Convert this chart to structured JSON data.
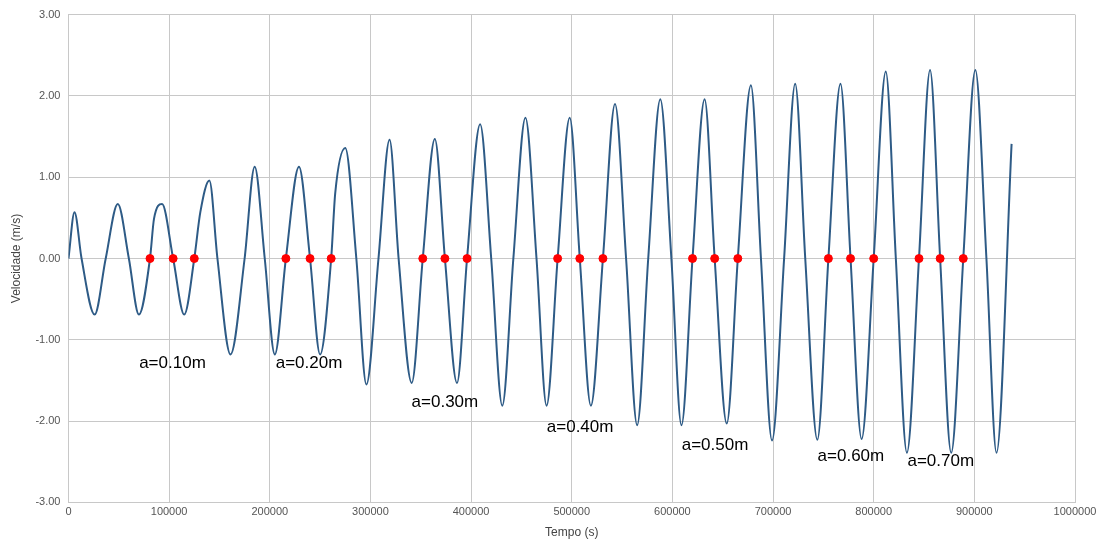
{
  "chart_data": {
    "type": "line",
    "xlabel": "Tempo (s)",
    "ylabel": "Velocidade (m/s)",
    "xlim": [
      0,
      1000000
    ],
    "xticks": [
      0,
      100000,
      200000,
      300000,
      400000,
      500000,
      600000,
      700000,
      800000,
      900000,
      1000000
    ],
    "ylim": [
      -3,
      3
    ],
    "yticks": [
      {
        "value": -3,
        "label": "-3.00"
      },
      {
        "value": -2,
        "label": "-2.00"
      },
      {
        "value": -1,
        "label": "-1.00"
      },
      {
        "value": 0,
        "label": "0.00"
      },
      {
        "value": 1,
        "label": "1.00"
      },
      {
        "value": 2,
        "label": "2.00"
      },
      {
        "value": 3,
        "label": "3.00"
      }
    ],
    "grid": true,
    "legend": false,
    "series": [
      {
        "color": "#2e5b86",
        "marker": "none",
        "line_style": "solid",
        "x": [
          0,
          6000,
          13000,
          26000,
          37000,
          49000,
          60000,
          70000,
          81000,
          85000,
          93000,
          104000,
          115000,
          125000,
          131000,
          140000,
          148000,
          161000,
          175000,
          185000,
          195000,
          205000,
          216000,
          229000,
          240000,
          250000,
          261000,
          265000,
          275000,
          286000,
          296000,
          308000,
          319000,
          328000,
          341000,
          352000,
          364000,
          374000,
          386000,
          396000,
          409000,
          420000,
          431000,
          442000,
          454000,
          465000,
          475000,
          486000,
          498000,
          508000,
          519000,
          531000,
          543000,
          554000,
          565000,
          576000,
          588000,
          599000,
          609000,
          620000,
          632000,
          642000,
          654000,
          665000,
          678000,
          688000,
          699000,
          711000,
          722000,
          732000,
          744000,
          755000,
          767000,
          777000,
          788000,
          800000,
          812000,
          822000,
          833000,
          845000,
          856000,
          866000,
          877000,
          889000,
          901000,
          912000,
          922000,
          937000
        ],
        "values": [
          0,
          0.57,
          0,
          -0.69,
          0,
          0.67,
          0,
          -0.69,
          0,
          0.49,
          0.67,
          0,
          -0.69,
          0,
          0.57,
          0.96,
          0,
          -1.18,
          0,
          1.13,
          0,
          -1.18,
          0,
          1.13,
          0,
          -1.18,
          0,
          0.8,
          1.36,
          0,
          -1.55,
          0,
          1.46,
          0,
          -1.53,
          0,
          1.47,
          0,
          -1.53,
          0,
          1.65,
          0,
          -1.81,
          0,
          1.73,
          0,
          -1.81,
          0,
          1.73,
          0,
          -1.81,
          0,
          1.9,
          0,
          -2.05,
          0,
          1.96,
          0,
          -2.05,
          0,
          1.96,
          0,
          -2.03,
          0,
          2.13,
          0,
          -2.24,
          0,
          2.15,
          0,
          -2.23,
          0,
          2.15,
          0,
          -2.22,
          0,
          2.3,
          0,
          -2.39,
          0,
          2.32,
          0,
          -2.39,
          0,
          2.32,
          0,
          -2.39,
          1.41
        ]
      },
      {
        "type": "scatter",
        "color": "#ff0000",
        "marker": "circle",
        "x": [
          81000,
          104000,
          125000,
          216000,
          240000,
          261000,
          352000,
          374000,
          396000,
          486000,
          508000,
          531000,
          620000,
          642000,
          665000,
          755000,
          777000,
          800000,
          845000,
          866000,
          889000
        ],
        "values": [
          0,
          0,
          0,
          0,
          0,
          0,
          0,
          0,
          0,
          0,
          0,
          0,
          0,
          0,
          0,
          0,
          0,
          0,
          0,
          0,
          0
        ]
      }
    ],
    "annotations": [
      "a=0.10m",
      "a=0.20m",
      "a=0.30m",
      "a=0.40m",
      "a=0.50m",
      "a=0.60m",
      "a=0.70m"
    ]
  }
}
